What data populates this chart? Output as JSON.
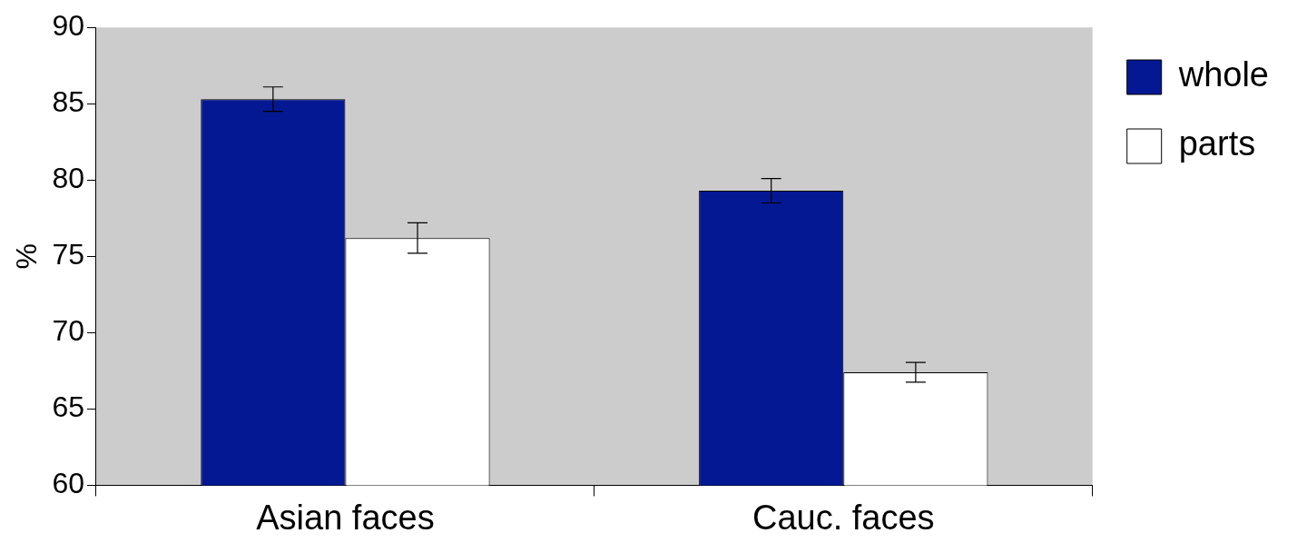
{
  "chart_data": {
    "type": "bar",
    "ylabel": "%",
    "categories": [
      "Asian faces",
      "Cauc. faces"
    ],
    "series": [
      {
        "name": "whole",
        "color": "#041893",
        "values": [
          85.3,
          79.3
        ],
        "errors": [
          0.8,
          0.8
        ]
      },
      {
        "name": "parts",
        "color": "#ffffff",
        "values": [
          76.2,
          67.4
        ],
        "errors": [
          1.0,
          0.65
        ]
      }
    ],
    "ylim": [
      60,
      90
    ],
    "yticks": [
      60,
      65,
      70,
      75,
      80,
      85,
      90
    ],
    "grid": false,
    "legend": "right"
  }
}
